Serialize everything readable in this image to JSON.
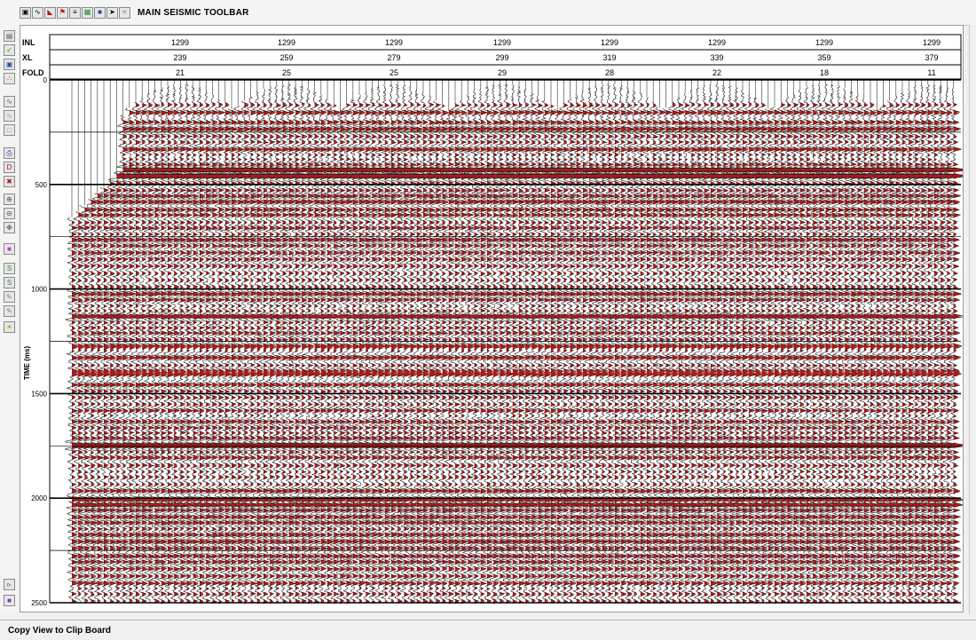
{
  "toolbar": {
    "label": "MAIN SEISMIC TOOLBAR",
    "icons": [
      "select-icon",
      "wave-icon",
      "red-wedge-icon",
      "red-flag-icon",
      "bars-icon",
      "green-grid-icon",
      "blue-square-icon",
      "pointer-icon",
      "waves-icon"
    ]
  },
  "sidebar": {
    "icons": [
      "data-icon",
      "green-check-icon",
      "display-icon",
      "def-icon",
      "wave-tool-icon",
      "gray-wave-icon",
      "gray-box-icon",
      "print-icon",
      "d-icon",
      "x-icon",
      "zoom-icon",
      "zoom-out-icon",
      "expand-icon",
      "pink-icon",
      "green-s1-icon",
      "green-s2-icon",
      "pick-icon",
      "pick2-icon",
      "yellow-icon",
      "cursor-icon",
      "purple-icon"
    ]
  },
  "header": {
    "rows": [
      "INL",
      "XL",
      "FOLD"
    ],
    "columns": [
      {
        "inl": "1299",
        "xl": "239",
        "fold": "21"
      },
      {
        "inl": "1299",
        "xl": "259",
        "fold": "25"
      },
      {
        "inl": "1299",
        "xl": "279",
        "fold": "25"
      },
      {
        "inl": "1299",
        "xl": "299",
        "fold": "29"
      },
      {
        "inl": "1299",
        "xl": "319",
        "fold": "28"
      },
      {
        "inl": "1299",
        "xl": "339",
        "fold": "22"
      },
      {
        "inl": "1299",
        "xl": "359",
        "fold": "18"
      },
      {
        "inl": "1299",
        "xl": "379",
        "fold": "11"
      }
    ]
  },
  "axis": {
    "label": "TIME (ms)",
    "ticks": [
      "0",
      "500",
      "1000",
      "1500",
      "2000",
      "2500"
    ]
  },
  "colors": {
    "wiggle_fill": "#b01818",
    "wiggle_line": "#1a1a1a",
    "grid": "#000000"
  },
  "status": {
    "text": "Copy View to Clip Board"
  }
}
